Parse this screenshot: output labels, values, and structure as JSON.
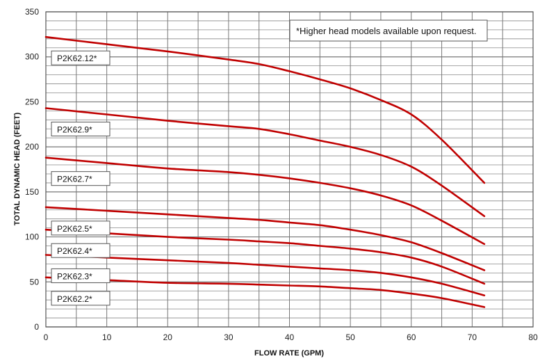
{
  "chart_data": {
    "type": "line",
    "xlabel": "FLOW RATE (GPM)",
    "ylabel": "TOTAL DYNAMIC HEAD (FEET)",
    "xlim": [
      0,
      80
    ],
    "ylim": [
      0,
      350
    ],
    "xticks": [
      "0",
      "10",
      "20",
      "30",
      "40",
      "50",
      "60",
      "70",
      "80"
    ],
    "yticks": [
      "0",
      "50",
      "100",
      "150",
      "200",
      "250",
      "300",
      "350"
    ],
    "grid": true,
    "annotation": "*Higher head models available upon request.",
    "line_color": "#c00000",
    "x": [
      0,
      10,
      20,
      30,
      35,
      40,
      45,
      50,
      55,
      60,
      65,
      72
    ],
    "series": [
      {
        "name": "P2K62.12*",
        "values": [
          322,
          314,
          306,
          297,
          292,
          284,
          275,
          265,
          252,
          236,
          208,
          160
        ]
      },
      {
        "name": "P2K62.9*",
        "values": [
          243,
          236,
          229,
          223,
          220,
          214,
          207,
          200,
          191,
          178,
          157,
          123
        ]
      },
      {
        "name": "P2K62.7*",
        "values": [
          188,
          182,
          176,
          172,
          169,
          165,
          160,
          154,
          146,
          135,
          118,
          92
        ]
      },
      {
        "name": "P2K62.5*",
        "values": [
          133,
          129,
          125,
          121,
          119,
          116,
          113,
          108,
          102,
          94,
          82,
          63
        ]
      },
      {
        "name": "P2K62.4*",
        "values": [
          108,
          104,
          100,
          97,
          95,
          93,
          90,
          87,
          83,
          77,
          67,
          48
        ]
      },
      {
        "name": "P2K62.3*",
        "values": [
          80,
          77,
          74,
          71,
          69,
          67,
          65,
          63,
          60,
          55,
          48,
          35
        ]
      },
      {
        "name": "P2K62.2*",
        "values": [
          55,
          52,
          49,
          48,
          47,
          46,
          45,
          43,
          41,
          37,
          32,
          22
        ]
      }
    ]
  }
}
